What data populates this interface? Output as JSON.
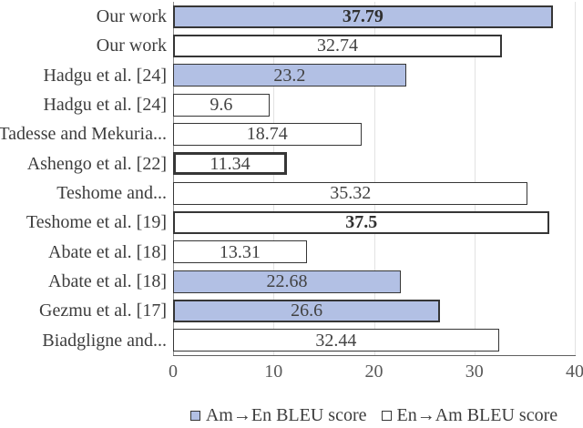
{
  "chart_data": {
    "type": "bar",
    "orientation": "horizontal",
    "title": "",
    "xlabel": "",
    "ylabel": "",
    "xlim": [
      0,
      40
    ],
    "xticks": [
      0,
      10,
      20,
      30,
      40
    ],
    "grid": true,
    "legend_position": "bottom",
    "series_colors": {
      "Am→En BLEU score": "#b2c0e4",
      "En→Am BLEU score": "#ffffff"
    },
    "bar_border_color": "#363636",
    "legend": [
      {
        "label": "Am→En BLEU score",
        "fill": "#b2c0e4"
      },
      {
        "label": "En→Am BLEU score",
        "fill": "#ffffff"
      }
    ],
    "bars": [
      {
        "category": "Our work",
        "value": 37.79,
        "label": "37.79",
        "series": "Am→En BLEU score",
        "bold": true,
        "border_px": 2.4
      },
      {
        "category": "Our work",
        "value": 32.74,
        "label": "32.74",
        "series": "En→Am BLEU score",
        "bold": false,
        "border_px": 2.0
      },
      {
        "category": "Hadgu et al. [24]",
        "value": 23.2,
        "label": "23.2",
        "series": "Am→En BLEU score",
        "bold": false,
        "border_px": 1.8
      },
      {
        "category": "Hadgu et al. [24]",
        "value": 9.6,
        "label": "9.6",
        "series": "En→Am BLEU score",
        "bold": false,
        "border_px": 1.6
      },
      {
        "category": "Tadesse and Mekuria...",
        "value": 18.74,
        "label": "18.74",
        "series": "En→Am BLEU score",
        "bold": false,
        "border_px": 1.6
      },
      {
        "category": "Ashengo et al. [22]",
        "value": 11.34,
        "label": "11.34",
        "series": "En→Am BLEU score",
        "bold": false,
        "border_px": 3.0
      },
      {
        "category": "Teshome and...",
        "value": 35.32,
        "label": "35.32",
        "series": "En→Am BLEU score",
        "bold": false,
        "border_px": 1.6
      },
      {
        "category": "Teshome et al. [19]",
        "value": 37.5,
        "label": "37.5",
        "series": "En→Am BLEU score",
        "bold": true,
        "border_px": 2.2
      },
      {
        "category": "Abate et al. [18]",
        "value": 13.31,
        "label": "13.31",
        "series": "En→Am BLEU score",
        "bold": false,
        "border_px": 1.6
      },
      {
        "category": "Abate et al. [18]",
        "value": 22.68,
        "label": "22.68",
        "series": "Am→En BLEU score",
        "bold": false,
        "border_px": 1.8
      },
      {
        "category": "Gezmu et al. [17]",
        "value": 26.6,
        "label": "26.6",
        "series": "Am→En BLEU score",
        "bold": false,
        "border_px": 2.0
      },
      {
        "category": "Biadgligne and...",
        "value": 32.44,
        "label": "32.44",
        "series": "En→Am BLEU score",
        "bold": false,
        "border_px": 1.8
      }
    ]
  }
}
